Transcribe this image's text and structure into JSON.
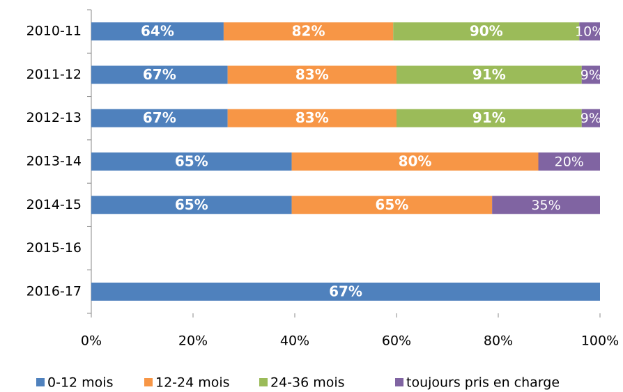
{
  "chart_data": {
    "type": "bar",
    "orientation": "horizontal",
    "stacking": "percent",
    "categories": [
      "2010-11",
      "2011-12",
      "2012-13",
      "2013-14",
      "2014-15",
      "2015-16",
      "2016-17"
    ],
    "series": [
      {
        "name": "0-12 mois",
        "color": "#4f81bd",
        "values": [
          64,
          67,
          67,
          65,
          65,
          null,
          67
        ],
        "value_labels": [
          "64%",
          "67%",
          "67%",
          "65%",
          "65%",
          null,
          "67%"
        ]
      },
      {
        "name": "12-24 mois",
        "color": "#f79646",
        "values": [
          82,
          83,
          83,
          80,
          65,
          null,
          null
        ],
        "value_labels": [
          "82%",
          "83%",
          "83%",
          "80%",
          "65%",
          null,
          null
        ]
      },
      {
        "name": "24-36 mois",
        "color": "#9bbb59",
        "values": [
          90,
          91,
          91,
          null,
          null,
          null,
          null
        ],
        "value_labels": [
          "90%",
          "91%",
          "91%",
          null,
          null,
          null,
          null
        ]
      },
      {
        "name": "toujours pris en charge",
        "color": "#8064a2",
        "values": [
          10,
          9,
          9,
          20,
          35,
          null,
          null
        ],
        "value_labels": [
          "10%",
          "9%",
          "9%",
          "20%",
          "35%",
          null,
          null
        ]
      }
    ],
    "xlim": [
      0,
      100
    ],
    "xticks": [
      {
        "value": 0,
        "label": "0%"
      },
      {
        "value": 20,
        "label": "20%"
      },
      {
        "value": 40,
        "label": "40%"
      },
      {
        "value": 60,
        "label": "60%"
      },
      {
        "value": 80,
        "label": "80%"
      },
      {
        "value": 100,
        "label": "100%"
      }
    ],
    "legend": "bottom"
  }
}
